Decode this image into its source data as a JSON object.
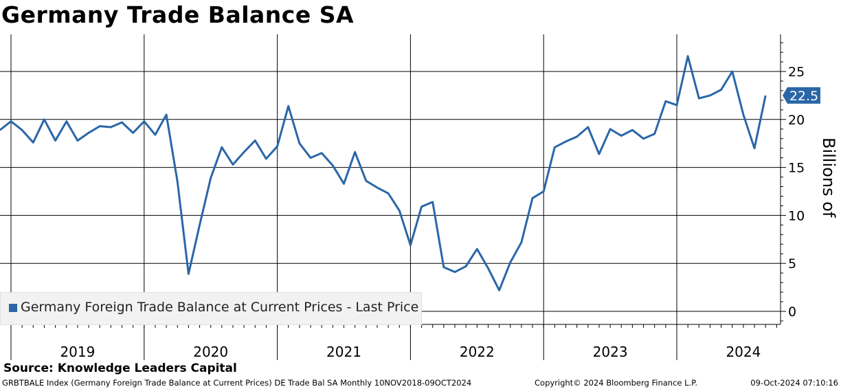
{
  "chart_data": {
    "type": "line",
    "title": "Germany Trade Balance SA",
    "ylabel": "Billions of",
    "ylim": [
      -1,
      28
    ],
    "yticks": [
      0,
      5,
      10,
      15,
      20,
      25
    ],
    "year_labels": [
      "2019",
      "2020",
      "2021",
      "2022",
      "2023",
      "2024"
    ],
    "x_start": "2018-11",
    "series": [
      {
        "name": "Germany Foreign Trade Balance at Current Prices - Last Price",
        "color": "#2a66a8",
        "values": [
          18.9,
          19.8,
          18.9,
          17.6,
          20.0,
          17.8,
          19.8,
          17.8,
          18.6,
          19.3,
          19.2,
          19.7,
          18.6,
          19.8,
          18.4,
          20.5,
          13.5,
          3.9,
          9.0,
          13.9,
          17.1,
          15.3,
          16.6,
          17.8,
          15.9,
          17.2,
          21.4,
          17.5,
          16.0,
          16.5,
          15.2,
          13.3,
          16.6,
          13.6,
          12.9,
          12.3,
          10.5,
          6.9,
          10.9,
          11.4,
          4.6,
          4.1,
          4.7,
          6.5,
          4.5,
          2.2,
          5.1,
          7.2,
          11.8,
          12.5,
          17.1,
          17.7,
          18.2,
          19.2,
          16.4,
          19.0,
          18.3,
          18.9,
          18.0,
          18.5,
          21.9,
          21.5,
          26.6,
          22.2,
          22.5,
          23.1,
          25.0,
          20.5,
          17.0,
          22.5
        ]
      }
    ],
    "last_value_label": "22.5"
  },
  "source": "Source: Knowledge Leaders Capital",
  "footer": {
    "left": "GRBTBALE Index (Germany Foreign Trade Balance at Current Prices) DE Trade Bal SA  Monthly 10NOV2018-09OCT2024",
    "middle": "Copyright© 2024 Bloomberg Finance L.P.",
    "right": "09-Oct-2024 07:10:16"
  },
  "colors": {
    "line": "#2a66a8",
    "grid": "#000000",
    "label_bg": "#2a66a8"
  }
}
